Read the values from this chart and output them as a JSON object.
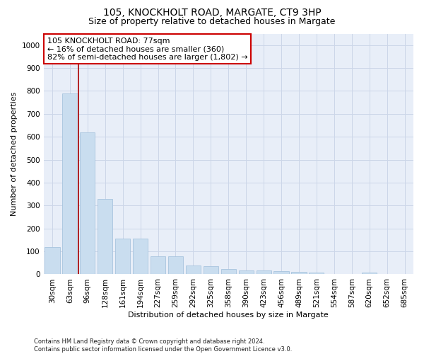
{
  "title": "105, KNOCKHOLT ROAD, MARGATE, CT9 3HP",
  "subtitle": "Size of property relative to detached houses in Margate",
  "xlabel": "Distribution of detached houses by size in Margate",
  "ylabel": "Number of detached properties",
  "categories": [
    "30sqm",
    "63sqm",
    "96sqm",
    "128sqm",
    "161sqm",
    "194sqm",
    "227sqm",
    "259sqm",
    "292sqm",
    "325sqm",
    "358sqm",
    "390sqm",
    "423sqm",
    "456sqm",
    "489sqm",
    "521sqm",
    "554sqm",
    "587sqm",
    "620sqm",
    "652sqm",
    "685sqm"
  ],
  "values": [
    120,
    790,
    620,
    330,
    155,
    155,
    80,
    80,
    38,
    35,
    22,
    18,
    18,
    14,
    12,
    7,
    0,
    0,
    7,
    0,
    0
  ],
  "bar_color": "#c9ddef",
  "bar_edge_color": "#a8c4de",
  "grid_color": "#ccd6e8",
  "background_color": "#e8eef8",
  "red_line_x": 1.5,
  "annotation_text": "105 KNOCKHOLT ROAD: 77sqm\n← 16% of detached houses are smaller (360)\n82% of semi-detached houses are larger (1,802) →",
  "annotation_box_color": "#ffffff",
  "annotation_border_color": "#cc0000",
  "ylim": [
    0,
    1050
  ],
  "yticks": [
    0,
    100,
    200,
    300,
    400,
    500,
    600,
    700,
    800,
    900,
    1000
  ],
  "footnote": "Contains HM Land Registry data © Crown copyright and database right 2024.\nContains public sector information licensed under the Open Government Licence v3.0.",
  "title_fontsize": 10,
  "subtitle_fontsize": 9,
  "xlabel_fontsize": 8,
  "ylabel_fontsize": 8,
  "tick_fontsize": 7.5,
  "annotation_fontsize": 8,
  "footnote_fontsize": 6
}
